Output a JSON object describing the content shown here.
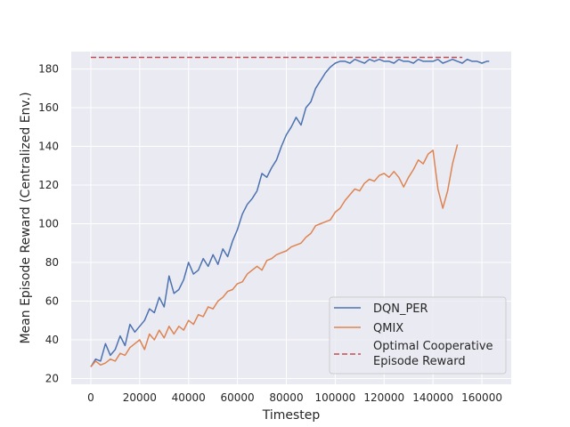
{
  "chart_data": {
    "type": "line",
    "xlabel": "Timestep",
    "ylabel": "Mean Episode Reward (Centralized Env.)",
    "xlim": [
      -8000,
      172000
    ],
    "ylim": [
      17,
      189
    ],
    "xticks": [
      0,
      20000,
      40000,
      60000,
      80000,
      100000,
      120000,
      140000,
      160000
    ],
    "yticks": [
      20,
      40,
      60,
      80,
      100,
      120,
      140,
      160,
      180
    ],
    "grid": true,
    "legend_position": "lower-right",
    "series": [
      {
        "name": "DQN_PER",
        "color": "#4c72b0",
        "style": "solid",
        "x": [
          0,
          2000,
          4000,
          6000,
          8000,
          10000,
          12000,
          14000,
          16000,
          18000,
          20000,
          22000,
          24000,
          26000,
          28000,
          30000,
          32000,
          34000,
          36000,
          38000,
          40000,
          42000,
          44000,
          46000,
          48000,
          50000,
          52000,
          54000,
          56000,
          58000,
          60000,
          62000,
          64000,
          66000,
          68000,
          70000,
          72000,
          74000,
          76000,
          78000,
          80000,
          82000,
          84000,
          86000,
          88000,
          90000,
          92000,
          94000,
          96000,
          98000,
          100000,
          102000,
          104000,
          106000,
          108000,
          110000,
          112000,
          114000,
          116000,
          118000,
          120000,
          122000,
          124000,
          126000,
          128000,
          130000,
          132000,
          134000,
          136000,
          138000,
          140000,
          142000,
          144000,
          146000,
          148000,
          150000,
          152000,
          154000,
          156000,
          158000,
          160000,
          162000,
          163000
        ],
        "y": [
          26,
          30,
          29,
          38,
          32,
          35,
          42,
          37,
          48,
          44,
          47,
          50,
          56,
          54,
          62,
          57,
          73,
          64,
          66,
          71,
          80,
          74,
          76,
          82,
          78,
          84,
          79,
          87,
          83,
          91,
          97,
          105,
          110,
          113,
          117,
          126,
          124,
          129,
          133,
          140,
          146,
          150,
          155,
          151,
          160,
          163,
          170,
          174,
          178,
          181,
          183,
          184,
          184,
          183,
          185,
          184,
          183,
          185,
          184,
          185,
          184,
          184,
          183,
          185,
          184,
          184,
          183,
          185,
          184,
          184,
          184,
          185,
          183,
          184,
          185,
          184,
          183,
          185,
          184,
          184,
          183,
          184,
          184
        ]
      },
      {
        "name": "QMIX",
        "color": "#dd8452",
        "style": "solid",
        "x": [
          0,
          2000,
          4000,
          6000,
          8000,
          10000,
          12000,
          14000,
          16000,
          18000,
          20000,
          22000,
          24000,
          26000,
          28000,
          30000,
          32000,
          34000,
          36000,
          38000,
          40000,
          42000,
          44000,
          46000,
          48000,
          50000,
          52000,
          54000,
          56000,
          58000,
          60000,
          62000,
          64000,
          66000,
          68000,
          70000,
          72000,
          74000,
          76000,
          78000,
          80000,
          82000,
          84000,
          86000,
          88000,
          90000,
          92000,
          94000,
          96000,
          98000,
          100000,
          102000,
          104000,
          106000,
          108000,
          110000,
          112000,
          114000,
          116000,
          118000,
          120000,
          122000,
          124000,
          126000,
          128000,
          130000,
          132000,
          134000,
          136000,
          138000,
          140000,
          142000,
          144000,
          146000,
          148000,
          150000
        ],
        "y": [
          26,
          29,
          27,
          28,
          30,
          29,
          33,
          32,
          36,
          38,
          40,
          35,
          43,
          40,
          45,
          41,
          47,
          43,
          47,
          45,
          50,
          48,
          53,
          52,
          57,
          56,
          60,
          62,
          65,
          66,
          69,
          70,
          74,
          76,
          78,
          76,
          81,
          82,
          84,
          85,
          86,
          88,
          89,
          90,
          93,
          95,
          99,
          100,
          101,
          102,
          106,
          108,
          112,
          115,
          118,
          117,
          121,
          123,
          122,
          125,
          126,
          124,
          127,
          124,
          119,
          124,
          128,
          133,
          131,
          136,
          138,
          118,
          108,
          117,
          131,
          141
        ]
      },
      {
        "name": "Optimal Cooperative Episode Reward",
        "color": "#c44e52",
        "style": "dashed",
        "x": [
          0,
          152000
        ],
        "y": [
          186,
          186
        ]
      }
    ]
  },
  "legend": {
    "entries": [
      {
        "label_lines": [
          "DQN_PER"
        ],
        "color": "#4c72b0",
        "style": "solid"
      },
      {
        "label_lines": [
          "QMIX"
        ],
        "color": "#dd8452",
        "style": "solid"
      },
      {
        "label_lines": [
          "Optimal Cooperative",
          "Episode Reward"
        ],
        "color": "#c44e52",
        "style": "dashed"
      }
    ]
  },
  "colors": {
    "plot_background": "#eaeaf2",
    "grid": "#ffffff"
  }
}
